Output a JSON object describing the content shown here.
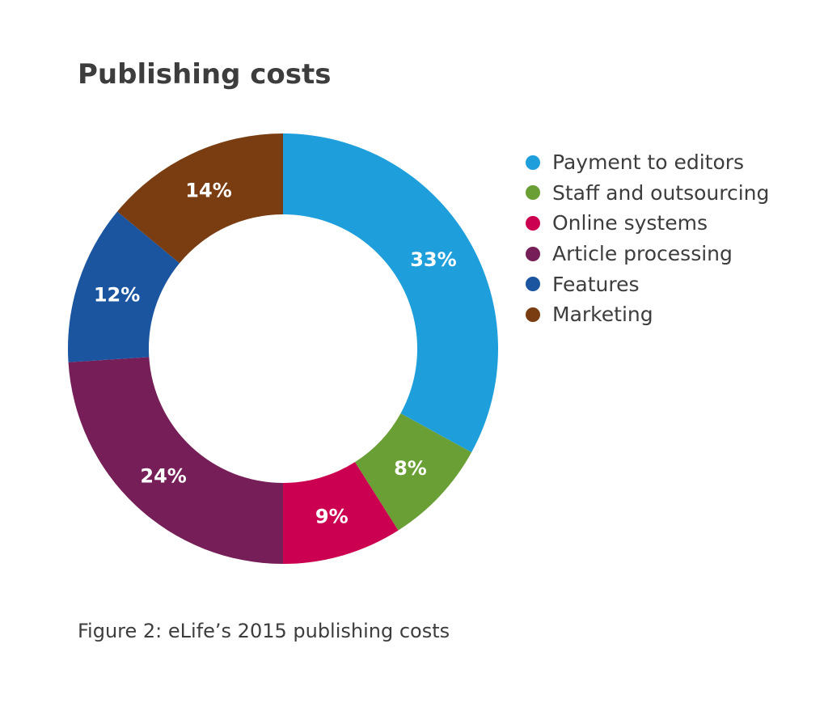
{
  "chart_data": {
    "type": "pie",
    "title": "Publishing costs",
    "caption": "Figure 2: eLife’s 2015 publishing costs",
    "legend_position": "right",
    "series": [
      {
        "name": "Payment to editors",
        "value": 33,
        "label": "33%",
        "color": "#1e9fdb"
      },
      {
        "name": "Staff and outsourcing",
        "value": 8,
        "label": "8%",
        "color": "#6a9f35"
      },
      {
        "name": "Online systems",
        "value": 9,
        "label": "9%",
        "color": "#cc0050"
      },
      {
        "name": "Article processing",
        "value": 24,
        "label": "24%",
        "color": "#761e57"
      },
      {
        "name": "Features",
        "value": 12,
        "label": "12%",
        "color": "#1b55a0"
      },
      {
        "name": "Marketing",
        "value": 14,
        "label": "14%",
        "color": "#7a3d12"
      }
    ]
  }
}
